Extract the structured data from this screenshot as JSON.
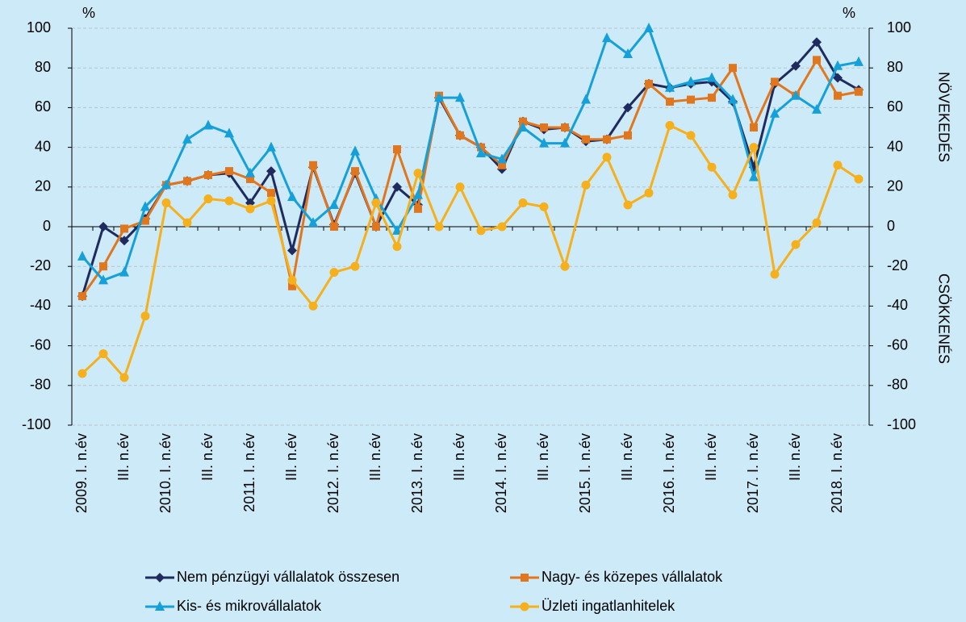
{
  "chart_data": {
    "type": "line",
    "categories": [
      "2009. I. n.év",
      null,
      "III. n.év",
      null,
      "2010. I. n.év",
      null,
      "III. n.év",
      null,
      "2011. I. n.év",
      null,
      "III. n.év",
      null,
      "2012. I. n.év",
      null,
      "III. n.év",
      null,
      "2013. I. n.év",
      null,
      "III. n.év",
      null,
      "2014. I. n.év",
      null,
      "III. n.év",
      null,
      "2015. I. n.év",
      null,
      "III. n.év",
      null,
      "2016. I. n.év",
      null,
      "III. n.év",
      null,
      "2017. I. n.év",
      null,
      "III. n.év",
      null,
      "2018. I. n.év",
      null
    ],
    "series": [
      {
        "name": "Nem pénzügyi vállalatok összesen",
        "color": "#1f2a5e",
        "marker": "diamond",
        "values": [
          -35,
          0,
          -7,
          4,
          21,
          23,
          26,
          27,
          12,
          28,
          -12,
          30,
          1,
          27,
          0,
          20,
          11,
          65,
          46,
          40,
          29,
          53,
          49,
          50,
          43,
          44,
          60,
          72,
          70,
          72,
          73,
          63,
          30,
          72,
          81,
          93,
          75,
          69
        ]
      },
      {
        "name": "Nagy- és közepes vállalatok",
        "color": "#e2761c",
        "marker": "square",
        "values": [
          -35,
          -20,
          -1,
          3,
          21,
          23,
          26,
          28,
          24,
          17,
          -30,
          31,
          0,
          28,
          0,
          39,
          9,
          66,
          46,
          40,
          31,
          53,
          50,
          50,
          44,
          44,
          46,
          72,
          63,
          64,
          65,
          80,
          50,
          73,
          66,
          84,
          66,
          68
        ]
      },
      {
        "name": "Kis- és mikrovállalatok",
        "color": "#15a0d9",
        "marker": "triangle",
        "values": [
          -15,
          -27,
          -23,
          10,
          21,
          44,
          51,
          47,
          27,
          40,
          15,
          2,
          11,
          38,
          14,
          -2,
          16,
          65,
          65,
          37,
          34,
          50,
          42,
          42,
          64,
          95,
          87,
          100,
          70,
          73,
          75,
          64,
          25,
          57,
          66,
          59,
          81,
          83
        ]
      },
      {
        "name": "Üzleti ingatlanhitelek",
        "color": "#f5b01c",
        "marker": "circle",
        "values": [
          -74,
          -64,
          -76,
          -45,
          12,
          2,
          14,
          13,
          9,
          13,
          -27,
          -40,
          -23,
          -20,
          12,
          -10,
          27,
          0,
          20,
          -2,
          0,
          12,
          10,
          -20,
          21,
          35,
          11,
          17,
          51,
          46,
          30,
          16,
          40,
          -24,
          -9,
          2,
          31,
          24
        ]
      }
    ],
    "ylim": [
      -100,
      100
    ],
    "yticks": [
      -100,
      -80,
      -60,
      -40,
      -20,
      0,
      20,
      40,
      60,
      80,
      100
    ],
    "y2lim": [
      -100,
      100
    ],
    "y2ticks": [
      -100,
      -80,
      -60,
      -40,
      -20,
      0,
      20,
      40,
      60,
      80,
      100
    ],
    "grid": true,
    "y_unit_left": "%",
    "y_unit_right": "%",
    "annotation_up": "NÖVEKEDÉS",
    "annotation_down": "CSÖKKENÉS"
  }
}
